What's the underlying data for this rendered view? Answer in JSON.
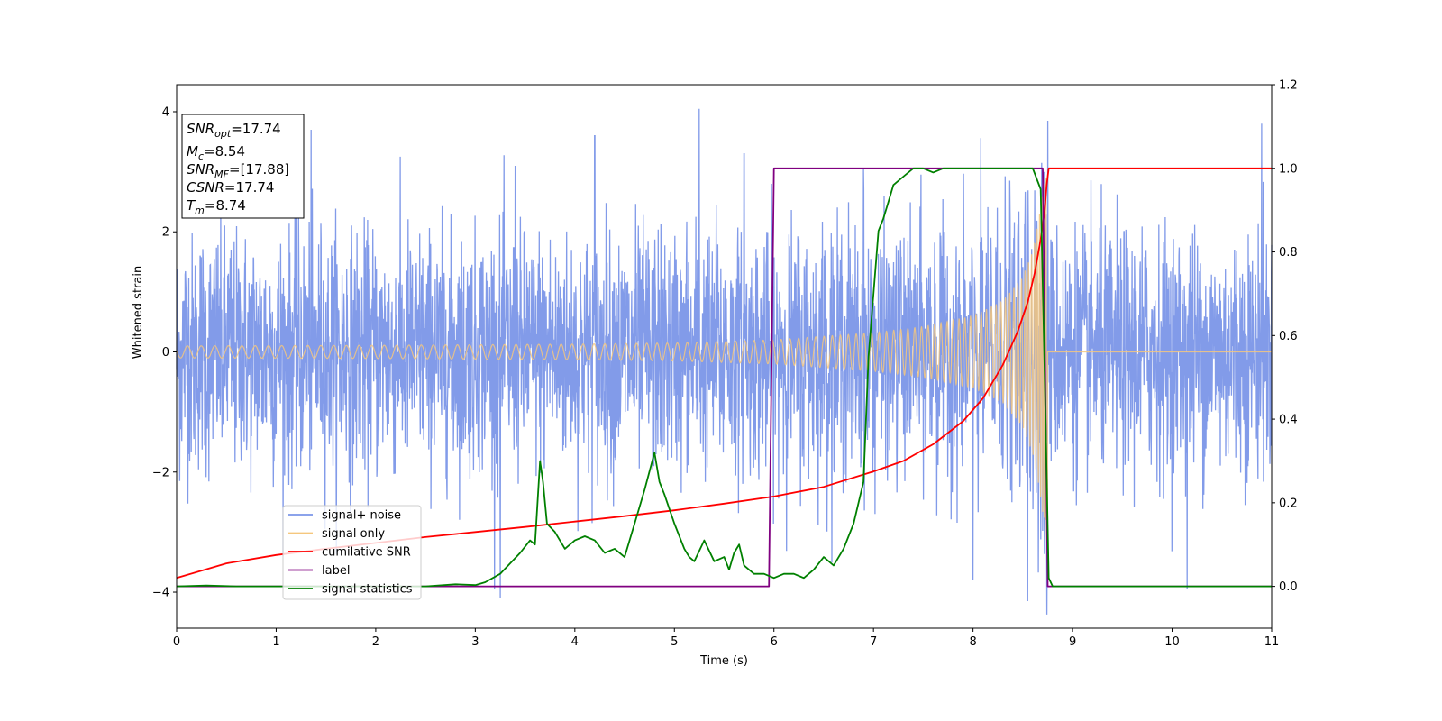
{
  "chart_data": {
    "type": "line",
    "title": "",
    "xlabel": "Time (s)",
    "ylabel": "Whitened strain",
    "y2label": "",
    "xlim": [
      0,
      11
    ],
    "ylim": [
      -4.6,
      4.45
    ],
    "y2lim": [
      -0.1,
      1.2
    ],
    "x_ticks": [
      "0",
      "1",
      "2",
      "3",
      "4",
      "5",
      "6",
      "7",
      "8",
      "9",
      "10",
      "11"
    ],
    "y_ticks": [
      "−4",
      "−2",
      "0",
      "2",
      "4"
    ],
    "y2_ticks": [
      "0.0",
      "0.2",
      "0.4",
      "0.6",
      "0.8",
      "1.0",
      "1.2"
    ],
    "grid": false,
    "legend_position": "lower-left",
    "annotations": {
      "snr_opt": {
        "sym": "SNR",
        "sub": "opt",
        "value": "=17.74"
      },
      "mc": {
        "sym": "M",
        "sub": "c",
        "value": "=8.54"
      },
      "snr_mf": {
        "sym": "SNR",
        "sub": "MF",
        "value": "=[17.88]"
      },
      "csnr": {
        "sym": "CSNR",
        "value": "=17.74"
      },
      "tm": {
        "sym": "T",
        "sub": "m",
        "value": "=8.74"
      }
    },
    "series": [
      {
        "name": "signal+ noise",
        "axis": "left",
        "color": "#7b96e8",
        "description": "whitened noise plus injected signal, std about 1.0, spikes to about 4",
        "noise_std": 1.0,
        "x_range": [
          0,
          11
        ],
        "spikes": [
          {
            "x": 5.25,
            "y": 4.05
          },
          {
            "x": 8.75,
            "y": 3.85
          },
          {
            "x": 10.9,
            "y": 3.8
          },
          {
            "x": 1.35,
            "y": 3.7
          },
          {
            "x": 6.9,
            "y": 3.05
          },
          {
            "x": 3.25,
            "y": -4.1
          },
          {
            "x": 8.55,
            "y": -4.15
          },
          {
            "x": 10.15,
            "y": -3.95
          },
          {
            "x": 8.0,
            "y": -3.8
          },
          {
            "x": 3.4,
            "y": 3.1
          },
          {
            "x": 5.7,
            "y": 3.3
          },
          {
            "x": 4.2,
            "y": 3.6
          }
        ]
      },
      {
        "name": "signal only",
        "axis": "left",
        "color": "#f5c77e",
        "description": "chirp with growing amplitude, merges at about 8.74 s",
        "t_merge": 8.74,
        "amplitude": [
          [
            0.0,
            0.1
          ],
          [
            2.0,
            0.11
          ],
          [
            4.0,
            0.13
          ],
          [
            5.0,
            0.15
          ],
          [
            6.0,
            0.2
          ],
          [
            7.0,
            0.32
          ],
          [
            7.5,
            0.42
          ],
          [
            8.0,
            0.6
          ],
          [
            8.3,
            0.85
          ],
          [
            8.5,
            1.25
          ],
          [
            8.6,
            1.7
          ],
          [
            8.65,
            2.1
          ],
          [
            8.7,
            2.7
          ],
          [
            8.74,
            3.2
          ]
        ]
      },
      {
        "name": "cumilative SNR",
        "axis": "right",
        "color": "#ff0000",
        "x": [
          0,
          0.5,
          1,
          1.5,
          2,
          2.5,
          3,
          3.5,
          4,
          4.5,
          5,
          5.5,
          6,
          6.5,
          7,
          7.3,
          7.6,
          7.9,
          8.1,
          8.3,
          8.45,
          8.55,
          8.62,
          8.68,
          8.72,
          8.74,
          8.76,
          11
        ],
        "y": [
          0.02,
          0.055,
          0.075,
          0.09,
          0.104,
          0.118,
          0.13,
          0.142,
          0.155,
          0.168,
          0.182,
          0.198,
          0.215,
          0.238,
          0.275,
          0.3,
          0.34,
          0.395,
          0.45,
          0.53,
          0.61,
          0.68,
          0.75,
          0.83,
          0.9,
          0.96,
          1.0,
          1.0
        ]
      },
      {
        "name": "label",
        "axis": "right",
        "color": "#800080",
        "x": [
          0,
          5.95,
          6.0,
          8.7,
          8.75,
          11
        ],
        "y": [
          0,
          0,
          1,
          1,
          0,
          0
        ]
      },
      {
        "name": "signal statistics",
        "axis": "right",
        "color": "#008000",
        "x": [
          0,
          0.3,
          0.6,
          1,
          1.5,
          2,
          2.5,
          2.8,
          3.0,
          3.1,
          3.25,
          3.45,
          3.55,
          3.6,
          3.65,
          3.68,
          3.72,
          3.8,
          3.9,
          4.0,
          4.1,
          4.2,
          4.3,
          4.4,
          4.5,
          4.6,
          4.7,
          4.8,
          4.85,
          4.9,
          5.0,
          5.1,
          5.15,
          5.2,
          5.3,
          5.4,
          5.5,
          5.55,
          5.6,
          5.65,
          5.7,
          5.8,
          5.9,
          6.0,
          6.1,
          6.2,
          6.3,
          6.4,
          6.5,
          6.6,
          6.7,
          6.8,
          6.9,
          6.95,
          7.0,
          7.05,
          7.1,
          7.15,
          7.2,
          7.3,
          7.4,
          7.5,
          7.6,
          7.7,
          7.8,
          8.0,
          8.2,
          8.4,
          8.6,
          8.68,
          8.72,
          8.76,
          8.8,
          9.0,
          11
        ],
        "y": [
          0.0,
          0.002,
          0.0,
          0.0,
          0.0,
          0.0,
          0.0,
          0.005,
          0.003,
          0.01,
          0.03,
          0.08,
          0.11,
          0.1,
          0.3,
          0.25,
          0.15,
          0.13,
          0.09,
          0.11,
          0.12,
          0.11,
          0.08,
          0.09,
          0.07,
          0.15,
          0.23,
          0.32,
          0.25,
          0.22,
          0.15,
          0.09,
          0.07,
          0.06,
          0.11,
          0.06,
          0.07,
          0.04,
          0.08,
          0.1,
          0.05,
          0.03,
          0.03,
          0.02,
          0.03,
          0.03,
          0.02,
          0.04,
          0.07,
          0.05,
          0.09,
          0.15,
          0.25,
          0.55,
          0.7,
          0.85,
          0.88,
          0.92,
          0.96,
          0.98,
          1.0,
          1.0,
          0.99,
          1.0,
          1.0,
          1.0,
          1.0,
          1.0,
          1.0,
          0.95,
          0.5,
          0.02,
          0.0,
          0.0,
          0.0
        ]
      }
    ]
  }
}
